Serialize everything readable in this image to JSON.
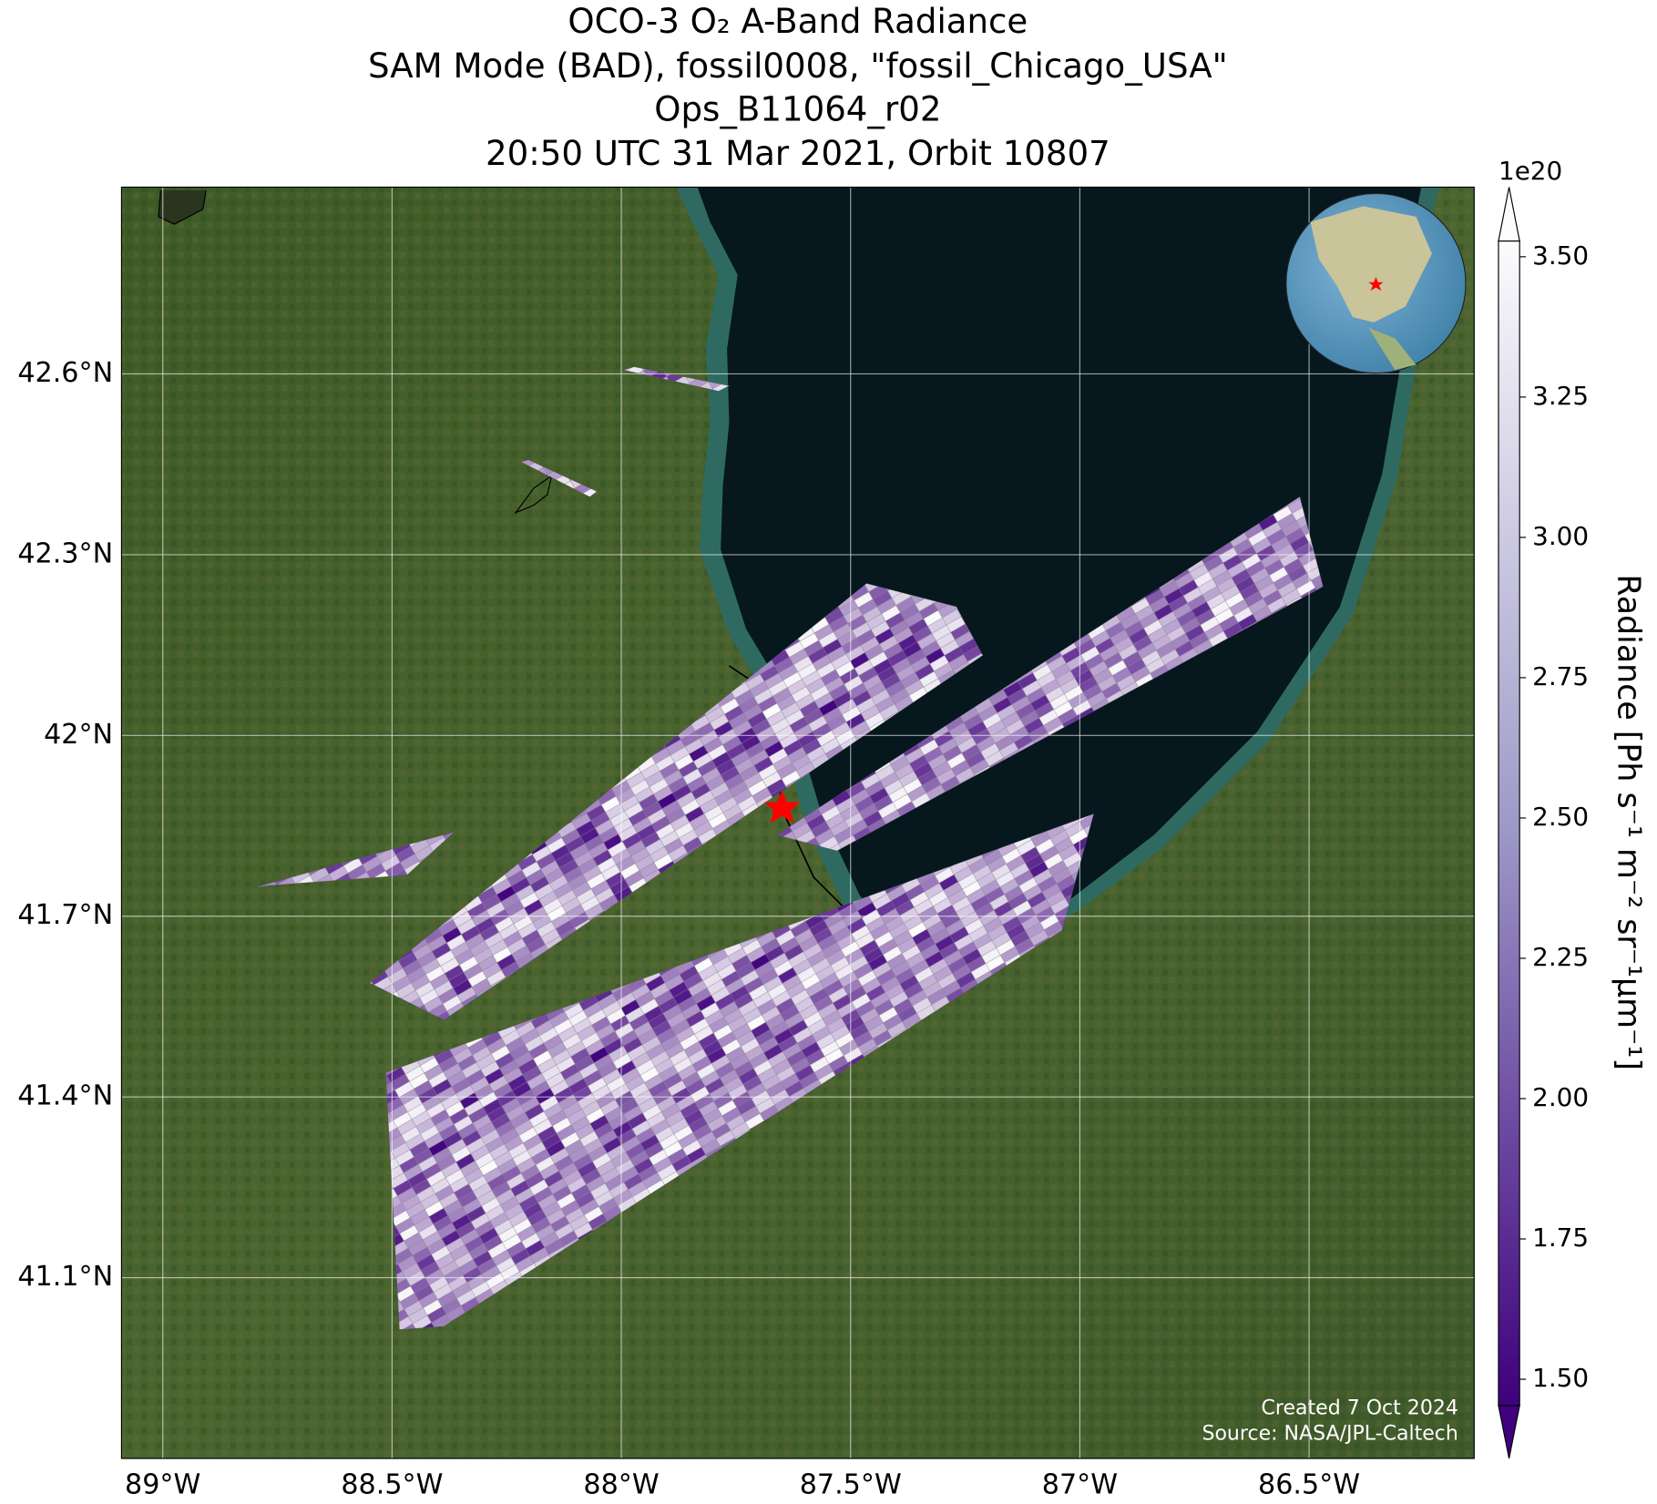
{
  "map": {
    "title": [
      "OCO-3 O₂ A-Band Radiance",
      "SAM Mode (BAD), fossil0008, \"fossil_Chicago_USA\"",
      "Ops_B11064_r02",
      "20:50 UTC 31 Mar 2021, Orbit 10807"
    ],
    "xlim": [
      -89.09,
      -86.14
    ],
    "ylim": [
      40.8,
      42.91
    ],
    "xticks": [
      {
        "value": -89,
        "label": "89°W"
      },
      {
        "value": -88.5,
        "label": "88.5°W"
      },
      {
        "value": -88,
        "label": "88°W"
      },
      {
        "value": -87.5,
        "label": "87.5°W"
      },
      {
        "value": -87,
        "label": "87°W"
      },
      {
        "value": -86.5,
        "label": "86.5°W"
      }
    ],
    "yticks": [
      {
        "value": 41.1,
        "label": "41.1°N"
      },
      {
        "value": 41.4,
        "label": "41.4°N"
      },
      {
        "value": 41.7,
        "label": "41.7°N"
      },
      {
        "value": 42,
        "label": "42°N"
      },
      {
        "value": 42.3,
        "label": "42.3°N"
      },
      {
        "value": 42.6,
        "label": "42.6°N"
      }
    ],
    "grid": true,
    "colorbar": {
      "label": "Radiance [Ph s⁻¹ m⁻² sr⁻¹μm⁻¹]",
      "offset_label": "1e20",
      "clim": [
        1.453,
        3.528
      ],
      "colors": [
        "#3f007d",
        "#fcfbfd"
      ],
      "ticks": [
        {
          "value": 1.5,
          "label": "1.50"
        },
        {
          "value": 1.75,
          "label": "1.75"
        },
        {
          "value": 2,
          "label": "2.00"
        },
        {
          "value": 2.25,
          "label": "2.25"
        },
        {
          "value": 2.5,
          "label": "2.50"
        },
        {
          "value": 2.75,
          "label": "2.75"
        },
        {
          "value": 3,
          "label": "3.00"
        },
        {
          "value": 3.25,
          "label": "3.25"
        },
        {
          "value": 3.5,
          "label": "3.50"
        }
      ]
    },
    "credits": [
      "Created 7 Oct 2024",
      "Source: NASA/JPL-Caltech"
    ]
  }
}
